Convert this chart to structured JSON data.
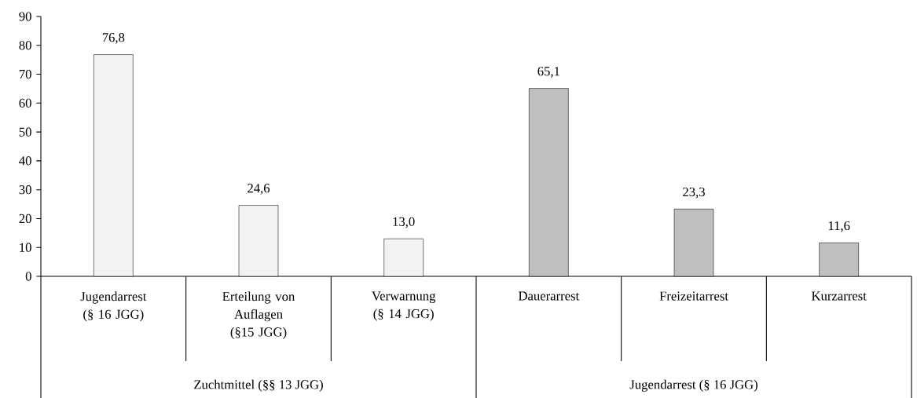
{
  "chart_data": {
    "type": "bar",
    "categories": [
      "Jugendarrest (§ 16 JGG)",
      "Erteilung von Auflagen (§15 JGG)",
      "Verwarnung (§ 14 JGG)",
      "Dauerarrest",
      "Freizeitarrest",
      "Kurzarrest"
    ],
    "values": [
      76.8,
      24.6,
      13.0,
      65.1,
      23.3,
      11.6
    ],
    "value_labels": [
      "76,8",
      "24,6",
      "13,0",
      "65,1",
      "23,3",
      "11,6"
    ],
    "colors": [
      "#f2f2f2",
      "#f2f2f2",
      "#f2f2f2",
      "#bfbfbf",
      "#bfbfbf",
      "#bfbfbf"
    ],
    "ylim": [
      0,
      90
    ],
    "yticks": [
      0,
      10,
      20,
      30,
      40,
      50,
      60,
      70,
      80,
      90
    ],
    "annotations": [
      "Zuchtmittel (§§ 13 JGG)",
      "Jugendarrest (§ 16 JGG)"
    ],
    "grid": false
  }
}
